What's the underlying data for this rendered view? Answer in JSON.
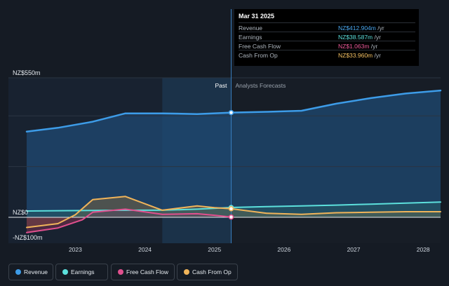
{
  "tooltip": {
    "date": "Mar 31 2025",
    "rows": [
      {
        "label": "Revenue",
        "value": "NZ$412.904m",
        "unit": "/yr",
        "color": "#4aa8f0"
      },
      {
        "label": "Earnings",
        "value": "NZ$38.587m",
        "unit": "/yr",
        "color": "#5ce0dc"
      },
      {
        "label": "Free Cash Flow",
        "value": "NZ$1.063m",
        "unit": "/yr",
        "color": "#ee5a9a"
      },
      {
        "label": "Cash From Op",
        "value": "NZ$33.960m",
        "unit": "/yr",
        "color": "#f4c061"
      }
    ]
  },
  "legend": [
    {
      "label": "Revenue",
      "color": "#3d9ce8"
    },
    {
      "label": "Earnings",
      "color": "#5ce0dc"
    },
    {
      "label": "Free Cash Flow",
      "color": "#e0508e"
    },
    {
      "label": "Cash From Op",
      "color": "#f0b45a"
    }
  ],
  "chart_data": {
    "type": "line",
    "ylim": [
      -100,
      550
    ],
    "xlim": [
      2022.3,
      2028.25
    ],
    "y_tick_labels": [
      {
        "value": 550,
        "label": "NZ$550m"
      },
      {
        "value": 0,
        "label": "NZ$0"
      },
      {
        "value": -100,
        "label": "-NZ$100m"
      }
    ],
    "x_tick_labels": [
      {
        "value": 2023,
        "label": "2023"
      },
      {
        "value": 2024,
        "label": "2024"
      },
      {
        "value": 2025,
        "label": "2025"
      },
      {
        "value": 2026,
        "label": "2026"
      },
      {
        "value": 2027,
        "label": "2027"
      },
      {
        "value": 2028,
        "label": "2028"
      }
    ],
    "past_label": "Past",
    "forecast_label": "Analysts Forecasts",
    "divider_x": 2025.24,
    "highlight_start": 2024.25,
    "series": [
      {
        "name": "Revenue",
        "color": "#3d9ce8",
        "points": [
          [
            2022.3,
            338
          ],
          [
            2022.75,
            353
          ],
          [
            2023.25,
            377
          ],
          [
            2023.72,
            410
          ],
          [
            2024.25,
            410
          ],
          [
            2024.75,
            407
          ],
          [
            2025.24,
            413
          ],
          [
            2025.75,
            416
          ],
          [
            2026.25,
            420
          ],
          [
            2026.75,
            448
          ],
          [
            2027.25,
            470
          ],
          [
            2027.75,
            488
          ],
          [
            2028.25,
            500
          ]
        ]
      },
      {
        "name": "Earnings",
        "color": "#5ce0dc",
        "points": [
          [
            2022.3,
            25
          ],
          [
            2022.75,
            26
          ],
          [
            2023.25,
            27
          ],
          [
            2023.72,
            28
          ],
          [
            2024.25,
            28
          ],
          [
            2024.75,
            32
          ],
          [
            2025.24,
            38.6
          ],
          [
            2025.75,
            42
          ],
          [
            2026.25,
            45
          ],
          [
            2026.75,
            48
          ],
          [
            2027.25,
            52
          ],
          [
            2027.75,
            56
          ],
          [
            2028.25,
            60
          ]
        ]
      },
      {
        "name": "Free Cash Flow",
        "color": "#e0508e",
        "points": [
          [
            2022.3,
            -60
          ],
          [
            2022.75,
            -42
          ],
          [
            2023.1,
            -10
          ],
          [
            2023.25,
            20
          ],
          [
            2023.72,
            32
          ],
          [
            2024.25,
            12
          ],
          [
            2024.75,
            14
          ],
          [
            2025.0,
            8
          ],
          [
            2025.24,
            1.1
          ]
        ]
      },
      {
        "name": "Cash From Op",
        "color": "#f0b45a",
        "points": [
          [
            2022.3,
            -40
          ],
          [
            2022.75,
            -25
          ],
          [
            2023.0,
            10
          ],
          [
            2023.25,
            70
          ],
          [
            2023.72,
            82
          ],
          [
            2024.25,
            28
          ],
          [
            2024.75,
            45
          ],
          [
            2025.0,
            38
          ],
          [
            2025.24,
            34
          ],
          [
            2025.75,
            16
          ],
          [
            2026.25,
            12
          ],
          [
            2026.75,
            18
          ],
          [
            2027.25,
            20
          ],
          [
            2027.75,
            22
          ],
          [
            2028.25,
            22
          ]
        ]
      }
    ]
  }
}
